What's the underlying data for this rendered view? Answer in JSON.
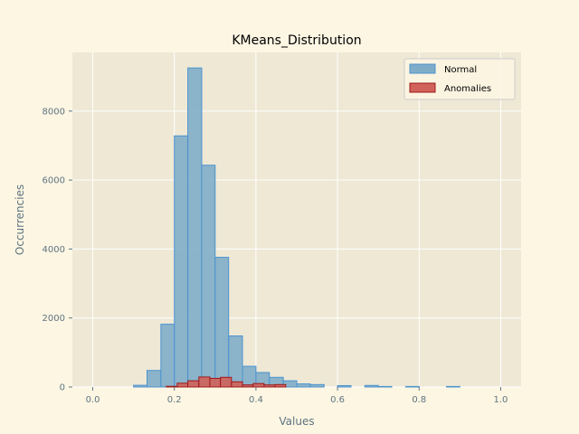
{
  "chart_data": {
    "type": "bar",
    "title": "KMeans_Distribution",
    "xlabel": "Values",
    "ylabel": "Occurrencies",
    "xlim": [
      -0.05,
      1.05
    ],
    "ylim": [
      0,
      9700
    ],
    "x_ticks": [
      0.0,
      0.2,
      0.4,
      0.6,
      0.8,
      1.0
    ],
    "x_tick_labels": [
      "0.0",
      "0.2",
      "0.4",
      "0.6",
      "0.8",
      "1.0"
    ],
    "y_ticks": [
      0,
      2000,
      4000,
      6000,
      8000
    ],
    "y_tick_labels": [
      "0",
      "2000",
      "4000",
      "6000",
      "8000"
    ],
    "grid": true,
    "legend_position": "top-right",
    "series": [
      {
        "name": "Normal",
        "color": "#7fadc9",
        "edge_color": "#4d94d0",
        "bins": [
          {
            "x0": 0.1,
            "x1": 0.133,
            "value": 50
          },
          {
            "x0": 0.133,
            "x1": 0.167,
            "value": 480
          },
          {
            "x0": 0.167,
            "x1": 0.2,
            "value": 1820
          },
          {
            "x0": 0.2,
            "x1": 0.233,
            "value": 7280
          },
          {
            "x0": 0.233,
            "x1": 0.267,
            "value": 9250
          },
          {
            "x0": 0.267,
            "x1": 0.3,
            "value": 6430
          },
          {
            "x0": 0.3,
            "x1": 0.333,
            "value": 3760
          },
          {
            "x0": 0.333,
            "x1": 0.367,
            "value": 1480
          },
          {
            "x0": 0.367,
            "x1": 0.4,
            "value": 600
          },
          {
            "x0": 0.4,
            "x1": 0.433,
            "value": 420
          },
          {
            "x0": 0.433,
            "x1": 0.467,
            "value": 280
          },
          {
            "x0": 0.467,
            "x1": 0.5,
            "value": 180
          },
          {
            "x0": 0.5,
            "x1": 0.533,
            "value": 90
          },
          {
            "x0": 0.533,
            "x1": 0.567,
            "value": 70
          },
          {
            "x0": 0.6,
            "x1": 0.633,
            "value": 40
          },
          {
            "x0": 0.667,
            "x1": 0.7,
            "value": 45
          },
          {
            "x0": 0.7,
            "x1": 0.733,
            "value": 15
          },
          {
            "x0": 0.767,
            "x1": 0.8,
            "value": 15
          },
          {
            "x0": 0.867,
            "x1": 0.9,
            "value": 15
          }
        ]
      },
      {
        "name": "Anomalies",
        "color": "#d0625a",
        "edge_color": "#9e1a1a",
        "bins": [
          {
            "x0": 0.18,
            "x1": 0.207,
            "value": 20
          },
          {
            "x0": 0.207,
            "x1": 0.233,
            "value": 110
          },
          {
            "x0": 0.233,
            "x1": 0.26,
            "value": 180
          },
          {
            "x0": 0.26,
            "x1": 0.287,
            "value": 290
          },
          {
            "x0": 0.287,
            "x1": 0.313,
            "value": 250
          },
          {
            "x0": 0.313,
            "x1": 0.34,
            "value": 280
          },
          {
            "x0": 0.34,
            "x1": 0.367,
            "value": 150
          },
          {
            "x0": 0.367,
            "x1": 0.393,
            "value": 60
          },
          {
            "x0": 0.393,
            "x1": 0.42,
            "value": 100
          },
          {
            "x0": 0.42,
            "x1": 0.447,
            "value": 60
          },
          {
            "x0": 0.447,
            "x1": 0.473,
            "value": 70
          }
        ]
      }
    ]
  }
}
